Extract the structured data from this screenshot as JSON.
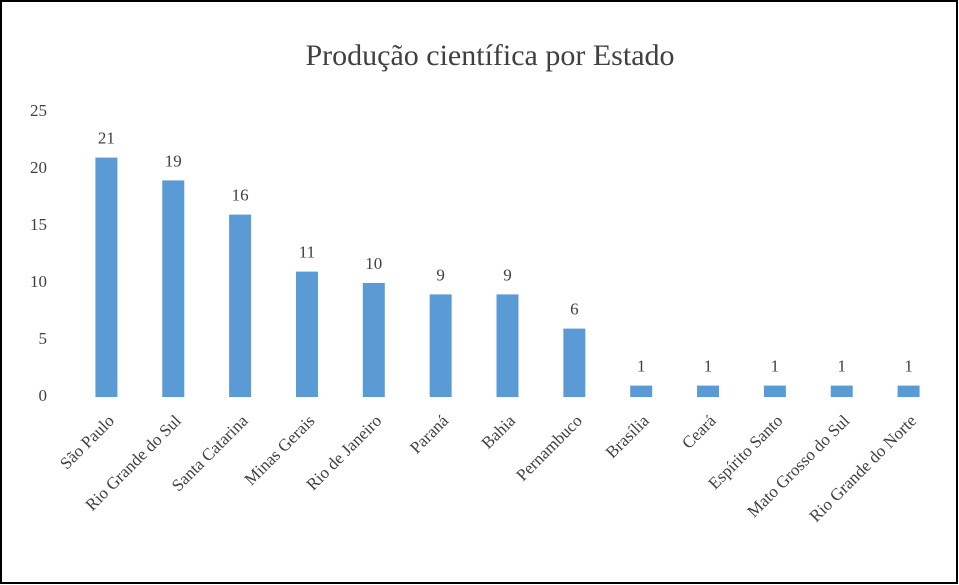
{
  "chart_data": {
    "type": "bar",
    "title": "Produção  científica  por Estado",
    "categories": [
      "São Paulo",
      "Rio Grande do Sul",
      "Santa Catarina",
      "Minas Gerais",
      "Rio de Janeiro",
      "Paraná",
      "Bahia",
      "Pernambuco",
      "Brasília",
      "Ceará",
      "Espírito Santo",
      "Mato Grosso do Sul",
      "Rio Grande do Norte"
    ],
    "values": [
      21,
      19,
      16,
      11,
      10,
      9,
      9,
      6,
      1,
      1,
      1,
      1,
      1
    ],
    "color": "#5b9bd5",
    "ylim": [
      0,
      25
    ],
    "yticks": [
      0,
      5,
      10,
      15,
      20,
      25
    ],
    "grid": false
  }
}
